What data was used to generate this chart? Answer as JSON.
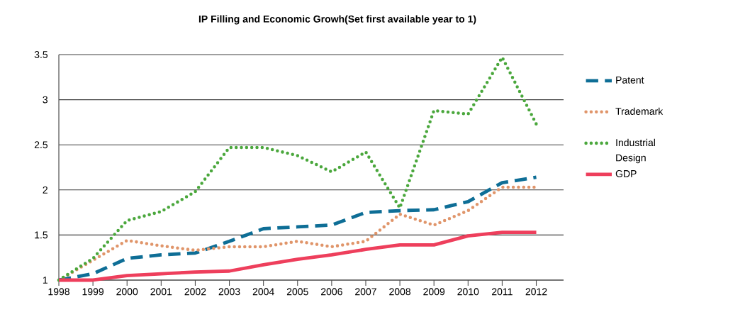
{
  "chart_data": {
    "type": "line",
    "title": "IP Filling and Economic Growh(Set first available year to 1)",
    "x": [
      1998,
      1999,
      2000,
      2001,
      2002,
      2003,
      2004,
      2005,
      2006,
      2007,
      2008,
      2009,
      2010,
      2011,
      2012
    ],
    "xlim": [
      1998,
      2012.8
    ],
    "xticks": [
      1998,
      1999,
      2000,
      2001,
      2002,
      2003,
      2004,
      2005,
      2006,
      2007,
      2008,
      2009,
      2010,
      2011,
      2012
    ],
    "ylim": [
      1,
      3.5
    ],
    "yticks": [
      1,
      1.5,
      2,
      2.5,
      3,
      3.5
    ],
    "grid": "y",
    "legend": "right",
    "marker": "none",
    "series": [
      {
        "name": "Patent",
        "color": "#0e6e96",
        "line_style": "dashed",
        "values": [
          1,
          1.07,
          1.24,
          1.28,
          1.3,
          1.43,
          1.57,
          1.59,
          1.61,
          1.75,
          1.77,
          1.78,
          1.87,
          2.08,
          2.14
        ]
      },
      {
        "name": "Trademark",
        "color": "#e0956a",
        "line_style": "dotted",
        "values": [
          1,
          1.22,
          1.44,
          1.38,
          1.33,
          1.37,
          1.37,
          1.43,
          1.37,
          1.43,
          1.73,
          1.61,
          1.77,
          2.03,
          2.03
        ]
      },
      {
        "name": "Industrial Design",
        "color": "#4aa73c",
        "line_style": "dotted",
        "values": [
          1,
          1.24,
          1.66,
          1.76,
          1.98,
          2.47,
          2.47,
          2.38,
          2.2,
          2.42,
          1.8,
          2.88,
          2.84,
          3.47,
          2.73
        ]
      },
      {
        "name": "GDP",
        "color": "#ee3f5c",
        "line_style": "solid",
        "values": [
          1,
          1.0,
          1.05,
          1.07,
          1.09,
          1.1,
          1.17,
          1.23,
          1.28,
          1.34,
          1.39,
          1.39,
          1.49,
          1.53,
          1.53
        ]
      }
    ]
  }
}
